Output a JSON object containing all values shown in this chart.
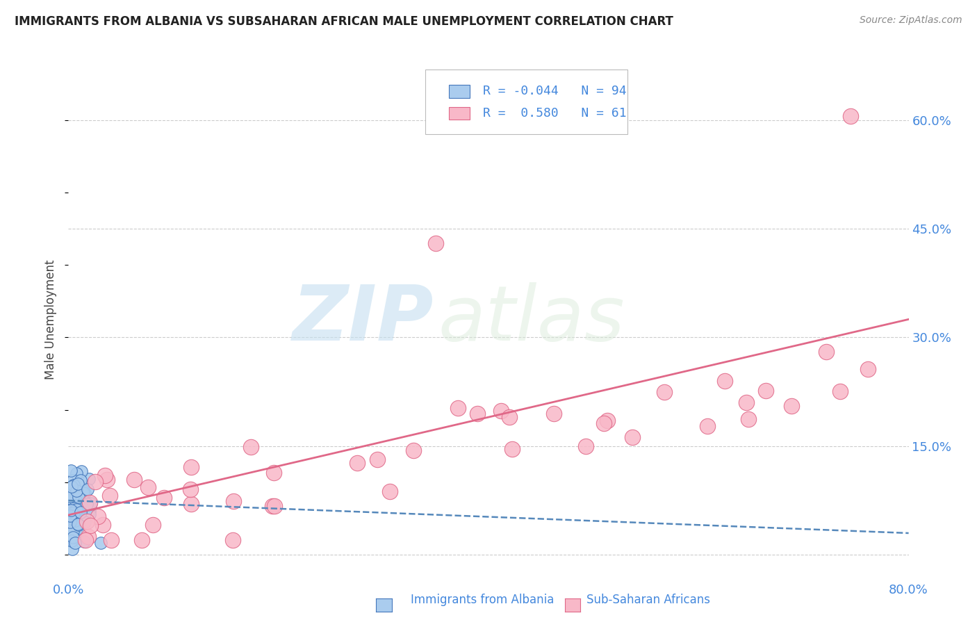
{
  "title": "IMMIGRANTS FROM ALBANIA VS SUBSAHARAN AFRICAN MALE UNEMPLOYMENT CORRELATION CHART",
  "source": "Source: ZipAtlas.com",
  "ylabel": "Male Unemployment",
  "xlim": [
    0.0,
    0.8
  ],
  "ylim": [
    -0.03,
    0.68
  ],
  "yticks": [
    0.0,
    0.15,
    0.3,
    0.45,
    0.6
  ],
  "xticks": [
    0.0,
    0.2,
    0.4,
    0.6,
    0.8
  ],
  "albania_R": -0.044,
  "albania_N": 94,
  "subsaharan_R": 0.58,
  "subsaharan_N": 61,
  "albania_color": "#aaccee",
  "albania_edge_color": "#4477bb",
  "subsaharan_color": "#f8b8c8",
  "subsaharan_edge_color": "#e06888",
  "albania_line_color": "#5588bb",
  "subsaharan_line_color": "#e06888",
  "watermark_zip": "ZIP",
  "watermark_atlas": "atlas",
  "background_color": "#ffffff",
  "grid_color": "#cccccc",
  "tick_color": "#4488dd",
  "title_color": "#222222",
  "source_color": "#888888",
  "legend_label_color": "#4488dd",
  "ylabel_color": "#444444"
}
